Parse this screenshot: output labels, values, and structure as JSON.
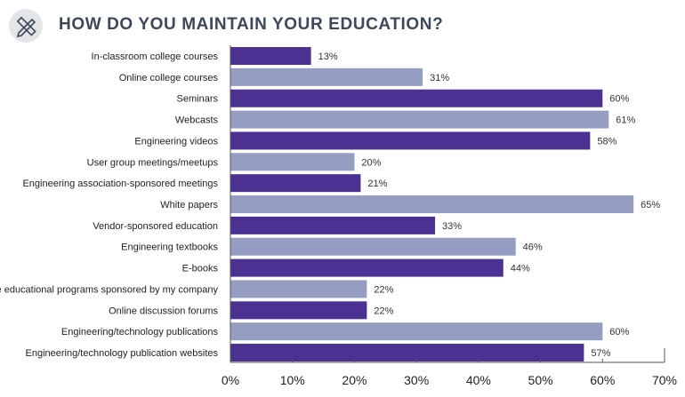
{
  "header": {
    "title": "HOW DO YOU MAINTAIN YOUR EDUCATION?",
    "icon": "pencil-ruler-icon"
  },
  "chart_data": {
    "type": "bar",
    "orientation": "horizontal",
    "title": "HOW DO YOU MAINTAIN YOUR EDUCATION?",
    "categories": [
      "In-classroom college courses",
      "Online college courses",
      "Seminars",
      "Webcasts",
      "Engineering videos",
      "User group meetings/meetups",
      "Engineering association-sponsored meetings",
      "White papers",
      "Vendor-sponsored education",
      "Engineering textbooks",
      "E-books",
      "In-house educational programs sponsored by my company",
      "Online discussion forums",
      "Engineering/technology publications",
      "Engineering/technology publication websites"
    ],
    "values": [
      13,
      31,
      60,
      61,
      58,
      20,
      21,
      65,
      33,
      46,
      44,
      22,
      22,
      60,
      57
    ],
    "value_labels": [
      "13%",
      "31%",
      "60%",
      "61%",
      "58%",
      "20%",
      "21%",
      "65%",
      "33%",
      "46%",
      "44%",
      "22%",
      "22%",
      "60%",
      "57%"
    ],
    "xlim": [
      0,
      70
    ],
    "xticks": [
      "0%",
      "10%",
      "20%",
      "30%",
      "40%",
      "50%",
      "60%",
      "70%"
    ],
    "xlabel": "",
    "ylabel": "",
    "grid": false,
    "colors": {
      "dark": "#4a3192",
      "light": "#959dc3",
      "title": "#3d4858"
    }
  }
}
